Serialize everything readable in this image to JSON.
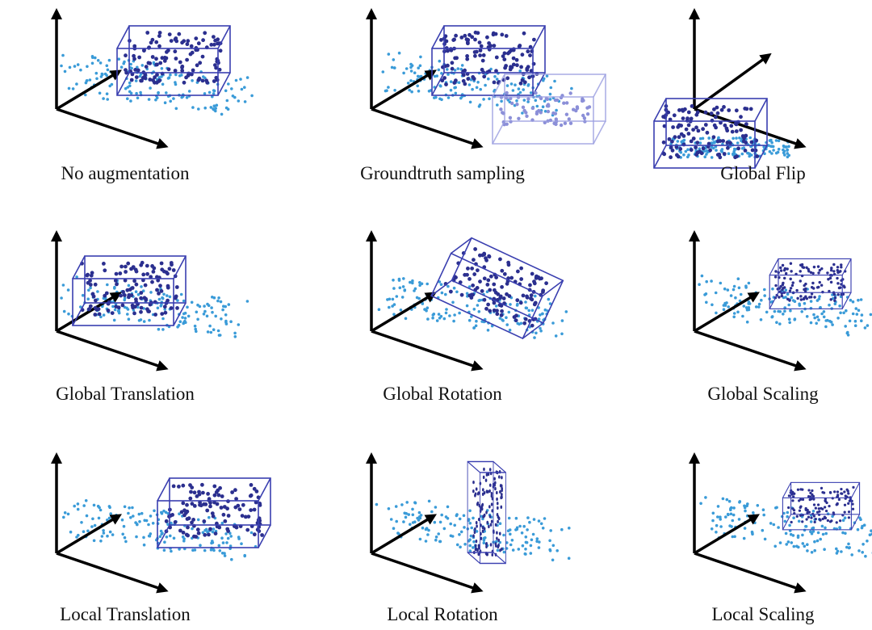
{
  "panels": [
    {
      "caption": "No augmentation"
    },
    {
      "caption": "Groundtruth sampling"
    },
    {
      "caption": "Global Flip"
    },
    {
      "caption": "Global Translation"
    },
    {
      "caption": "Global Rotation"
    },
    {
      "caption": "Global Scaling"
    },
    {
      "caption": "Local Translation"
    },
    {
      "caption": "Local Rotation"
    },
    {
      "caption": "Local Scaling"
    }
  ]
}
